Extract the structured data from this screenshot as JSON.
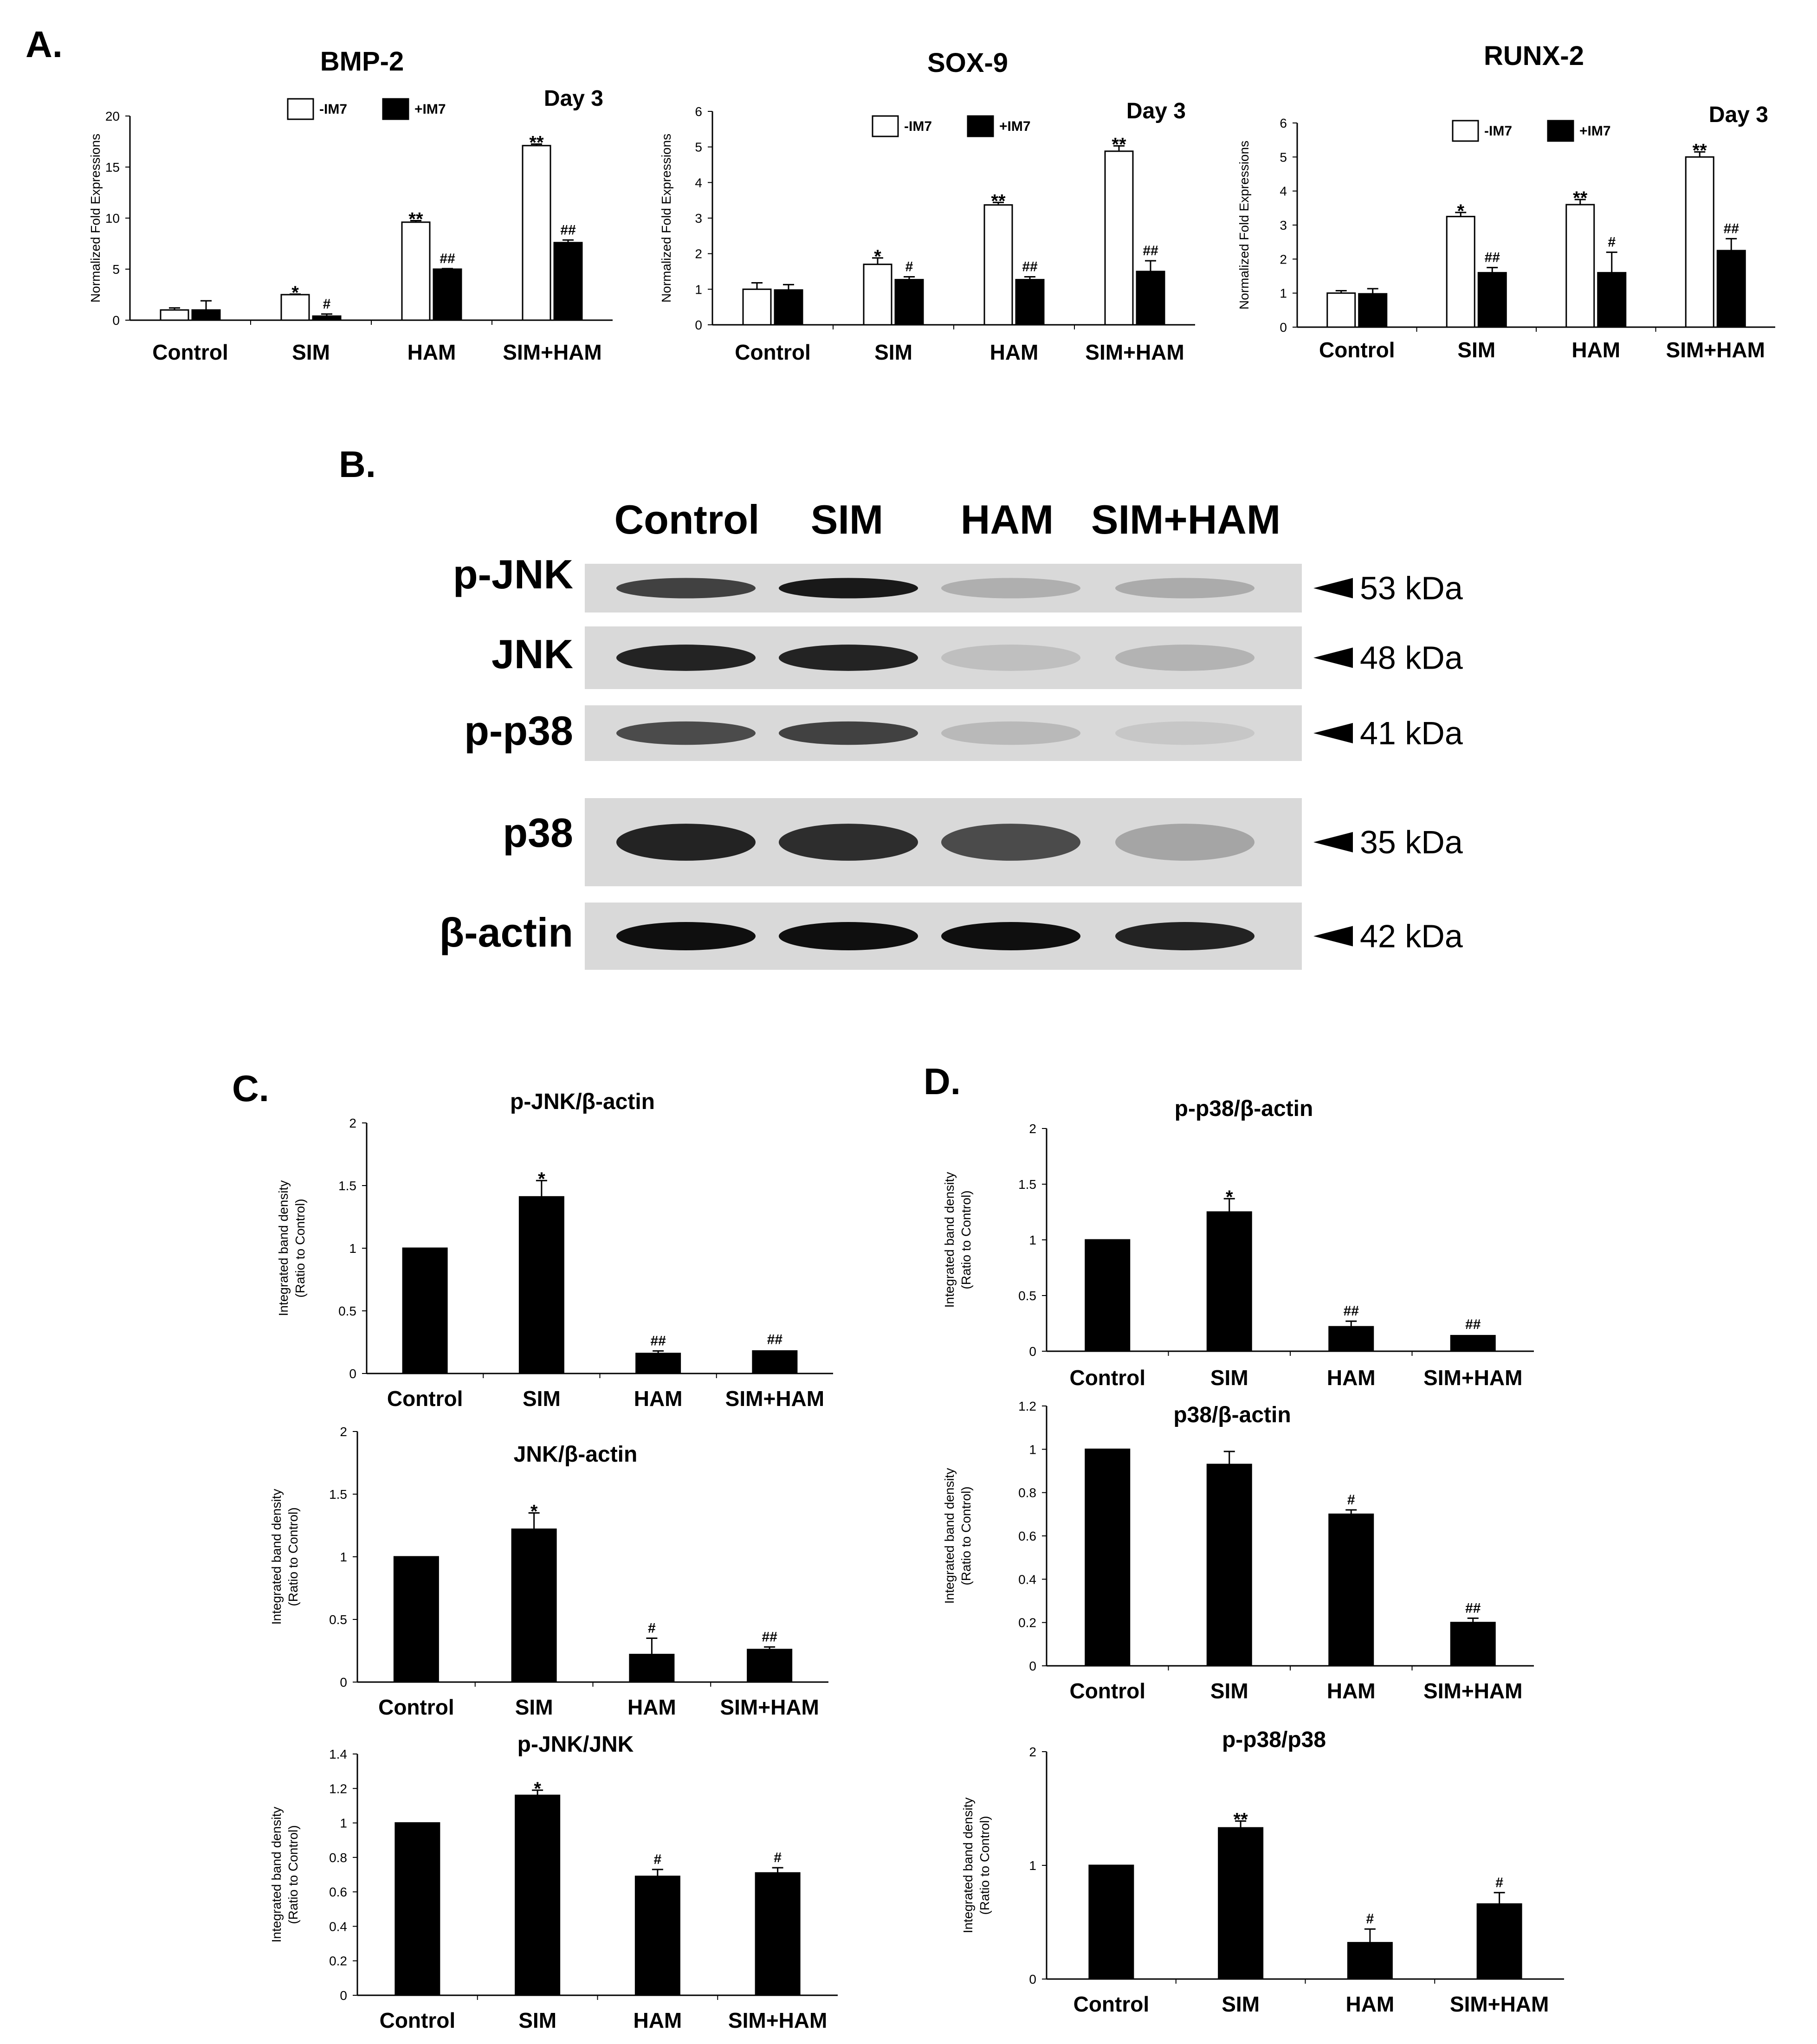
{
  "panels": {
    "A": "A.",
    "B": "B.",
    "C": "C.",
    "D": "D."
  },
  "colors": {
    "bar_black": "#000000",
    "bar_white": "#ffffff"
  },
  "chart_data": [
    {
      "id": "bmp2",
      "panel": "A",
      "type": "bar",
      "title": "BMP-2",
      "annotation": "Day 3",
      "ylabel": "Normalized Fold Expressions",
      "ylim": [
        0,
        20
      ],
      "yticks": [
        0,
        5,
        10,
        15,
        20
      ],
      "categories": [
        "Control",
        "SIM",
        "HAM",
        "SIM+HAM"
      ],
      "series": [
        {
          "name": "-IM7",
          "color": "#ffffff",
          "values": [
            1.0,
            2.5,
            9.6,
            17.1
          ],
          "errors": [
            0.2,
            0.05,
            0.15,
            0.15
          ],
          "labels": [
            "",
            "*",
            "**",
            "**"
          ]
        },
        {
          "name": "+IM7",
          "color": "#000000",
          "values": [
            1.0,
            0.4,
            5.0,
            7.6
          ],
          "errors": [
            0.9,
            0.2,
            0.05,
            0.25
          ],
          "labels": [
            "",
            "#",
            "##",
            "##"
          ]
        }
      ]
    },
    {
      "id": "sox9",
      "panel": "A",
      "type": "bar",
      "title": "SOX-9",
      "annotation": "Day 3",
      "ylabel": "Normalized Fold Expressions",
      "ylim": [
        0,
        6
      ],
      "yticks": [
        0,
        1,
        2,
        3,
        4,
        5,
        6
      ],
      "categories": [
        "Control",
        "SIM",
        "HAM",
        "SIM+HAM"
      ],
      "series": [
        {
          "name": "-IM7",
          "color": "#ffffff",
          "values": [
            1.0,
            1.7,
            3.37,
            4.88
          ],
          "errors": [
            0.18,
            0.18,
            0.07,
            0.15
          ],
          "labels": [
            "",
            "*",
            "**",
            "**"
          ]
        },
        {
          "name": "+IM7",
          "color": "#000000",
          "values": [
            0.98,
            1.27,
            1.27,
            1.5
          ],
          "errors": [
            0.15,
            0.08,
            0.08,
            0.3
          ],
          "labels": [
            "",
            "#",
            "##",
            "##"
          ]
        }
      ]
    },
    {
      "id": "runx2",
      "panel": "A",
      "type": "bar",
      "title": "RUNX-2",
      "annotation": "Day 3",
      "ylabel": "Normalized Fold Expressions",
      "ylim": [
        0,
        6
      ],
      "yticks": [
        0,
        1,
        2,
        3,
        4,
        5,
        6
      ],
      "categories": [
        "Control",
        "SIM",
        "HAM",
        "SIM+HAM"
      ],
      "series": [
        {
          "name": "-IM7",
          "color": "#ffffff",
          "values": [
            1.0,
            3.25,
            3.6,
            5.0
          ],
          "errors": [
            0.07,
            0.12,
            0.15,
            0.15
          ],
          "labels": [
            "",
            "*",
            "**",
            "**"
          ]
        },
        {
          "name": "+IM7",
          "color": "#000000",
          "values": [
            0.98,
            1.6,
            1.6,
            2.25
          ],
          "errors": [
            0.15,
            0.15,
            0.6,
            0.35
          ],
          "labels": [
            "",
            "##",
            "#",
            "##"
          ]
        }
      ]
    },
    {
      "id": "pjnk_actin",
      "panel": "C",
      "type": "bar",
      "title": "p-JNK/β-actin",
      "ylabel": "Integrated band density",
      "ylabel2": "(Ratio to Control)",
      "ylim": [
        0,
        2
      ],
      "yticks": [
        0,
        0.5,
        1,
        1.5,
        2
      ],
      "ytick_labels": [
        "0",
        "0.5",
        "1",
        "1.5",
        "2"
      ],
      "categories": [
        "Control",
        "SIM",
        "HAM",
        "SIM+HAM"
      ],
      "series": [
        {
          "color": "#000000",
          "values": [
            1.0,
            1.41,
            0.16,
            0.18
          ],
          "errors": [
            0.005,
            0.13,
            0.02,
            0.01
          ],
          "labels": [
            "",
            "*",
            "##",
            "##"
          ]
        }
      ]
    },
    {
      "id": "jnk_actin",
      "panel": "C",
      "type": "bar",
      "title": "JNK/β-actin",
      "ylabel": "Integrated band density",
      "ylabel2": "(Ratio to Control)",
      "ylim": [
        0,
        2
      ],
      "yticks": [
        0,
        0.5,
        1,
        1.5,
        2
      ],
      "ytick_labels": [
        "0",
        "0.5",
        "1",
        "1.5",
        "2"
      ],
      "categories": [
        "Control",
        "SIM",
        "HAM",
        "SIM+HAM"
      ],
      "series": [
        {
          "color": "#000000",
          "values": [
            1.0,
            1.22,
            0.22,
            0.26
          ],
          "errors": [
            0.005,
            0.13,
            0.13,
            0.02
          ],
          "labels": [
            "",
            "*",
            "#",
            "##"
          ]
        }
      ]
    },
    {
      "id": "pjnk_jnk",
      "panel": "C",
      "type": "bar",
      "title": "p-JNK/JNK",
      "ylabel": "Integrated band density",
      "ylabel2": "(Ratio to Control)",
      "ylim": [
        0,
        1.4
      ],
      "yticks": [
        0,
        0.2,
        0.4,
        0.6,
        0.8,
        1,
        1.2,
        1.4
      ],
      "ytick_labels": [
        "0",
        "0.2",
        "0.4",
        "0.6",
        "0.8",
        "1",
        "1.2",
        "1.4"
      ],
      "categories": [
        "Control",
        "SIM",
        "HAM",
        "SIM+HAM"
      ],
      "series": [
        {
          "color": "#000000",
          "values": [
            1.0,
            1.16,
            0.69,
            0.71
          ],
          "errors": [
            0.005,
            0.03,
            0.04,
            0.03
          ],
          "labels": [
            "",
            "*",
            "#",
            "#"
          ]
        }
      ]
    },
    {
      "id": "pp38_actin",
      "panel": "D",
      "type": "bar",
      "title": "p-p38/β-actin",
      "ylabel": "Integrated band density",
      "ylabel2": "(Ratio to Control)",
      "ylim": [
        0,
        2
      ],
      "yticks": [
        0,
        0.5,
        1,
        1.5,
        2
      ],
      "ytick_labels": [
        "0",
        "0.5",
        "1",
        "1.5",
        "2"
      ],
      "categories": [
        "Control",
        "SIM",
        "HAM",
        "SIM+HAM"
      ],
      "series": [
        {
          "color": "#000000",
          "values": [
            1.0,
            1.25,
            0.22,
            0.14
          ],
          "errors": [
            0.005,
            0.12,
            0.05,
            0.01
          ],
          "labels": [
            "",
            "*",
            "##",
            "##"
          ]
        }
      ]
    },
    {
      "id": "p38_actin",
      "panel": "D",
      "type": "bar",
      "title": "p38/β-actin",
      "ylabel": "Integrated band density",
      "ylabel2": "(Ratio to Control)",
      "ylim": [
        0,
        1.2
      ],
      "yticks": [
        0,
        0.2,
        0.4,
        0.6,
        0.8,
        1,
        1.2
      ],
      "ytick_labels": [
        "0",
        "0.2",
        "0.4",
        "0.6",
        "0.8",
        "1",
        "1.2"
      ],
      "categories": [
        "Control",
        "SIM",
        "HAM",
        "SIM+HAM"
      ],
      "series": [
        {
          "color": "#000000",
          "values": [
            1.0,
            0.93,
            0.7,
            0.2
          ],
          "errors": [
            0.005,
            0.06,
            0.02,
            0.02
          ],
          "labels": [
            "",
            "",
            "#",
            "##"
          ]
        }
      ]
    },
    {
      "id": "pp38_p38",
      "panel": "D",
      "type": "bar",
      "title": "p-p38/p38",
      "ylabel": "Integrated band density",
      "ylabel2": "(Ratio to Control)",
      "ylim": [
        0,
        2
      ],
      "yticks": [
        0,
        1,
        2
      ],
      "ytick_labels": [
        "0",
        "1",
        "2"
      ],
      "categories": [
        "Control",
        "SIM",
        "HAM",
        "SIM+HAM"
      ],
      "series": [
        {
          "color": "#000000",
          "values": [
            1.0,
            1.33,
            0.32,
            0.66
          ],
          "errors": [
            0.005,
            0.06,
            0.12,
            0.1
          ],
          "labels": [
            "",
            "**",
            "#",
            "#"
          ]
        }
      ]
    }
  ],
  "western_blot": {
    "lanes": [
      "Control",
      "SIM",
      "HAM",
      "SIM+HAM"
    ],
    "rows": [
      {
        "label": "p-JNK",
        "kda": "53 kDa",
        "intensity": [
          0.75,
          0.95,
          0.2,
          0.22
        ]
      },
      {
        "label": "JNK",
        "kda": "48 kDa",
        "intensity": [
          0.9,
          0.9,
          0.12,
          0.18
        ]
      },
      {
        "label": "p-p38",
        "kda": "41 kDa",
        "intensity": [
          0.7,
          0.75,
          0.15,
          0.08
        ]
      },
      {
        "label": "p38",
        "kda": "35 kDa",
        "intensity": [
          0.9,
          0.85,
          0.7,
          0.25
        ]
      },
      {
        "label": "β-actin",
        "kda": "42 kDa",
        "intensity": [
          1.0,
          1.0,
          1.0,
          0.9
        ]
      }
    ]
  }
}
